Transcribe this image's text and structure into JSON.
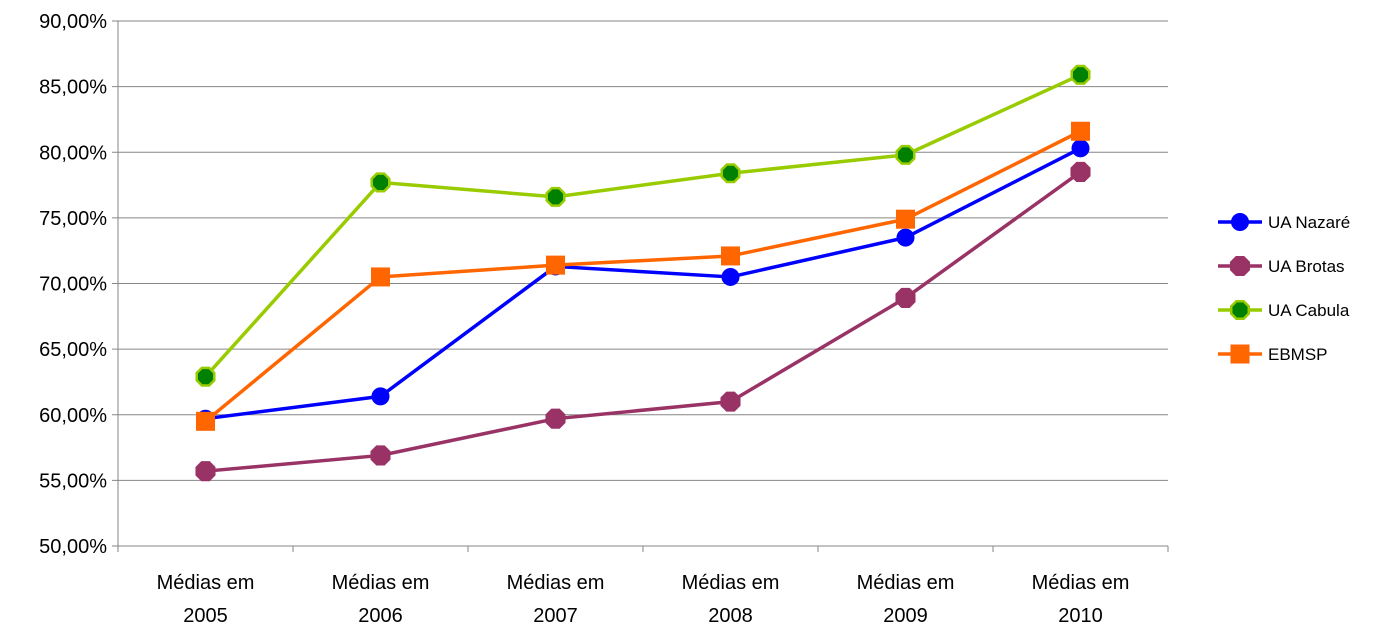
{
  "chart_data": {
    "type": "line",
    "title": "",
    "xlabel": "",
    "ylabel": "",
    "categories": [
      [
        "Médias em",
        "2005"
      ],
      [
        "Médias em",
        "2006"
      ],
      [
        "Médias em",
        "2007"
      ],
      [
        "Médias em",
        "2008"
      ],
      [
        "Médias em",
        "2009"
      ],
      [
        "Médias em",
        "2010"
      ]
    ],
    "y_ticks": [
      "50,00%",
      "55,00%",
      "60,00%",
      "65,00%",
      "70,00%",
      "75,00%",
      "80,00%",
      "85,00%",
      "90,00%"
    ],
    "ylim": [
      50,
      90
    ],
    "grid": true,
    "legend_position": "right",
    "series": [
      {
        "name": "UA Nazaré",
        "color": "#0000ff",
        "marker": "circle",
        "values": [
          59.7,
          61.4,
          71.3,
          70.5,
          73.5,
          80.3
        ]
      },
      {
        "name": "UA Brotas",
        "color": "#993366",
        "marker": "octagon",
        "values": [
          55.7,
          56.9,
          59.7,
          61.0,
          68.9,
          78.5
        ]
      },
      {
        "name": "UA Cabula",
        "color": "#99cc00",
        "marker_fill": "#008000",
        "marker": "octagon",
        "values": [
          62.9,
          77.7,
          76.6,
          78.4,
          79.8,
          85.9
        ]
      },
      {
        "name": "EBMSP",
        "color": "#ff6600",
        "marker": "square",
        "values": [
          59.5,
          70.5,
          71.4,
          72.1,
          74.9,
          81.6
        ]
      }
    ]
  }
}
